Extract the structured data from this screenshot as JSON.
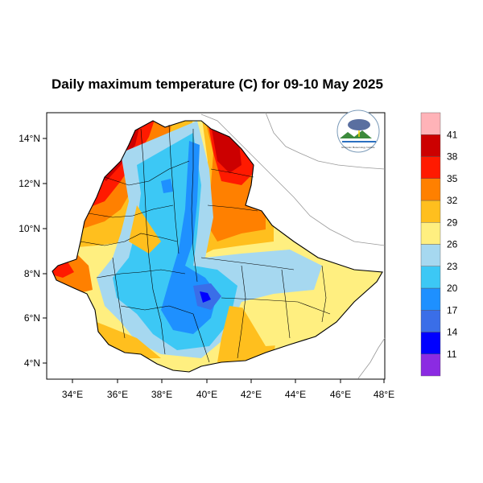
{
  "title": "Daily maximum temperature (C) for 09-10 May 2025",
  "map": {
    "lon_ticks": [
      "34°E",
      "36°E",
      "38°E",
      "40°E",
      "42°E",
      "44°E",
      "46°E",
      "48°E"
    ],
    "lat_ticks": [
      "14°N",
      "12°N",
      "10°N",
      "8°N",
      "6°N",
      "4°N"
    ],
    "lon_range": [
      32.9,
      48.1
    ],
    "lat_range": [
      3.2,
      15.0
    ]
  },
  "colorbar": {
    "bins": [
      {
        "color": "#8b2be2",
        "label": "11"
      },
      {
        "color": "#0000ff",
        "label": "14"
      },
      {
        "color": "#3a6ee8",
        "label": "17"
      },
      {
        "color": "#1e90ff",
        "label": "20"
      },
      {
        "color": "#3cc8f5",
        "label": "23"
      },
      {
        "color": "#a6d8f0",
        "label": "26"
      },
      {
        "color": "#ffef80",
        "label": "29"
      },
      {
        "color": "#ffbf1e",
        "label": "32"
      },
      {
        "color": "#ff8000",
        "label": "35"
      },
      {
        "color": "#ff1a00",
        "label": "38"
      },
      {
        "color": "#cc0000",
        "label": "41"
      },
      {
        "color": "#ffb3b8",
        "label": ""
      }
    ]
  },
  "logo": {
    "icon": "meteorology-agency-logo",
    "caption": "Ethiopian Meteorology Institute"
  }
}
